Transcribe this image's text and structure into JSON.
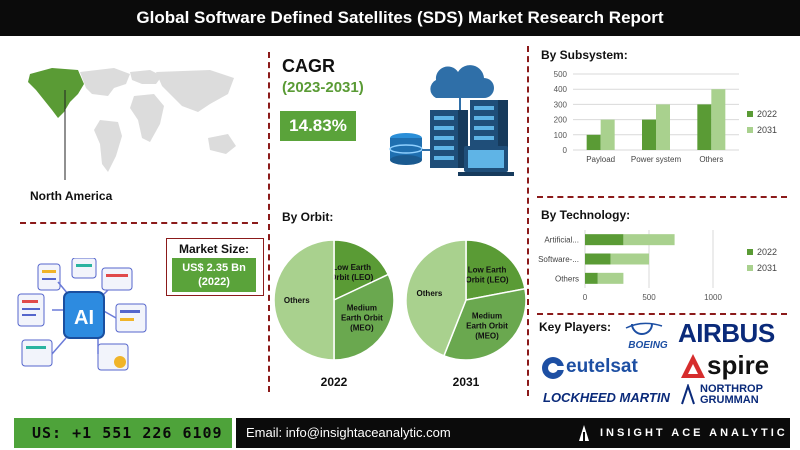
{
  "header": {
    "title": "Global Software Defined Satellites (SDS) Market Research Report"
  },
  "region": {
    "label": "North America"
  },
  "cagr": {
    "title": "CAGR",
    "years": "(2023-2031)",
    "value": "14.83%"
  },
  "market_size": {
    "label": "Market Size:",
    "value_line1": "US$ 2.35 Bn",
    "value_line2": "(2022)"
  },
  "orbit": {
    "title": "By Orbit:"
  },
  "subsystem": {
    "title": "By Subsystem:"
  },
  "technology": {
    "title": "By Technology:"
  },
  "key_players": {
    "title": "Key Players:",
    "logos": [
      "BOEING",
      "AIRBUS",
      "eutelsat",
      "spire",
      "LOCKHEED MARTIN",
      "NORTHROP",
      "GRUMMAN"
    ]
  },
  "colors": {
    "dark_green": "#5a9b35",
    "light_green": "#a9d18e",
    "mid_green": "#6aa84f",
    "accent_red": "#8b1a1a"
  },
  "footer": {
    "phone": "US: +1 551 226 6109",
    "email": "Email: info@insightaceanalytic.com",
    "brand": "INSIGHT ACE ANALYTIC"
  },
  "icons": [
    "world-map-icon",
    "cloud-server-icon",
    "ai-documents-icon",
    "insightace-logo-icon"
  ],
  "chart_data": [
    {
      "type": "bar",
      "title": "By Subsystem:",
      "categories": [
        "Payload",
        "Power system",
        "Others"
      ],
      "series": [
        {
          "name": "2022",
          "values": [
            100,
            200,
            300
          ],
          "color": "#5a9b35"
        },
        {
          "name": "2031",
          "values": [
            200,
            300,
            400
          ],
          "color": "#a9d18e"
        }
      ],
      "ylim": [
        0,
        500
      ],
      "yticks": [
        "0",
        "100",
        "200",
        "300",
        "400",
        "500"
      ],
      "legend": "right",
      "grid": true
    },
    {
      "type": "bar",
      "orientation": "horizontal",
      "stacked": true,
      "title": "By Technology:",
      "categories": [
        "Artificial...",
        "Software-...",
        "Others"
      ],
      "series": [
        {
          "name": "2022",
          "values": [
            300,
            200,
            100
          ],
          "color": "#5a9b35"
        },
        {
          "name": "2031",
          "values": [
            400,
            300,
            200
          ],
          "color": "#a9d18e"
        }
      ],
      "xlim": [
        0,
        1000
      ],
      "xticks": [
        "0",
        "500",
        "1000"
      ],
      "legend": "right",
      "grid": true
    },
    {
      "type": "pie",
      "title": "2022",
      "slices": [
        {
          "label": "Low Earth Orbit (LEO)",
          "value": 18,
          "color": "#5a9b35"
        },
        {
          "label": "Medium Earth Orbit (MEO)",
          "value": 32,
          "color": "#6aa84f"
        },
        {
          "label": "Others",
          "value": 50,
          "color": "#a9d18e"
        }
      ]
    },
    {
      "type": "pie",
      "title": "2031",
      "slices": [
        {
          "label": "Low Earth Orbit (LEO)",
          "value": 22,
          "color": "#5a9b35"
        },
        {
          "label": "Medium Earth Orbit (MEO)",
          "value": 34,
          "color": "#6aa84f"
        },
        {
          "label": "Others",
          "value": 44,
          "color": "#a9d18e"
        }
      ]
    }
  ]
}
